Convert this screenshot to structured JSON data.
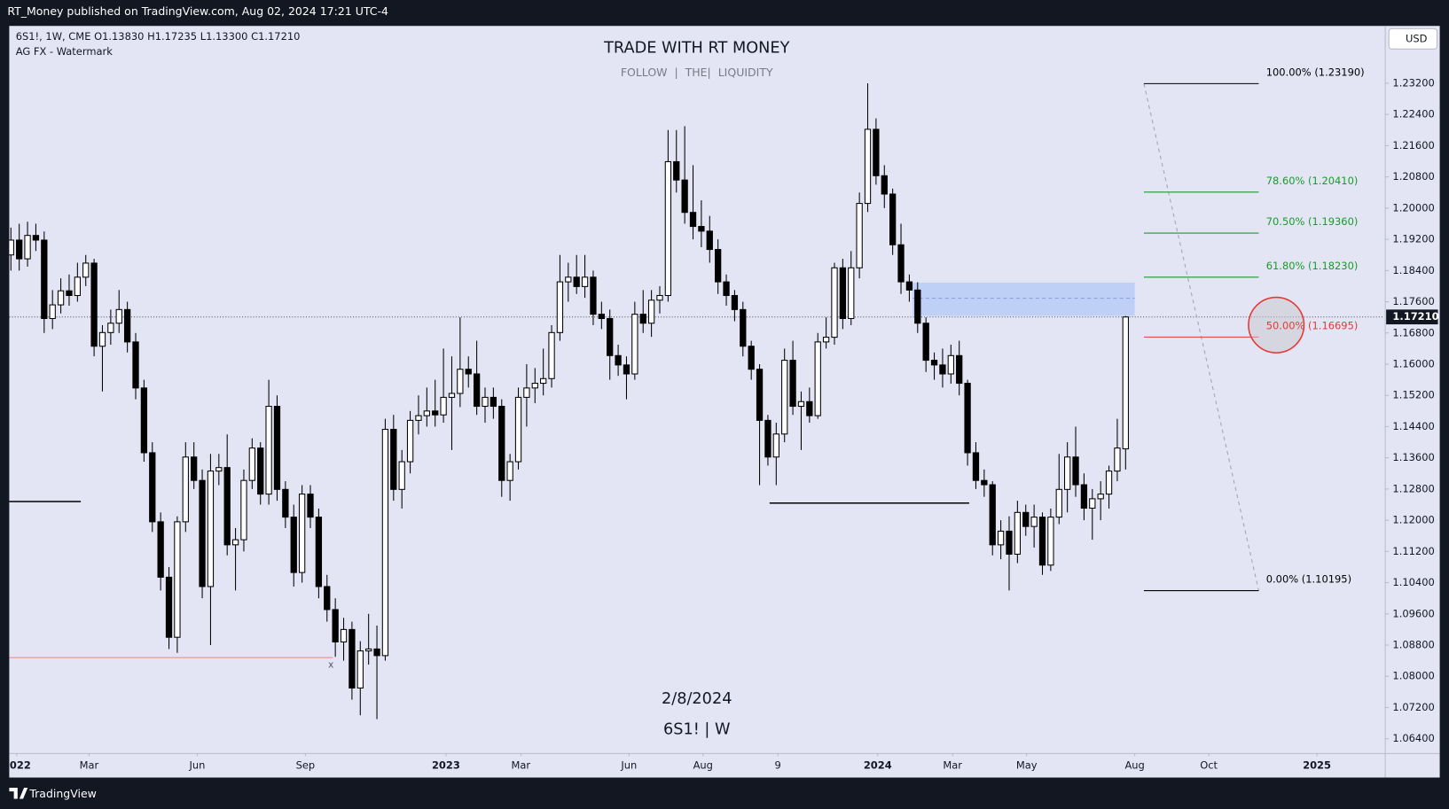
{
  "header": "RT_Money published on TradingView.com, Aug 02, 2024 17:21 UTC-4",
  "footer_brand": "TradingView",
  "chart_data": {
    "type": "candlestick",
    "title": "TRADE WITH RT MONEY",
    "subtitle": "FOLLOW  |  THE|  LIQUIDITY",
    "symbol_line": "6S1!, 1W, CME  O1.13830  H1.17235  L1.13300  C1.17210",
    "watermark": "AG FX - Watermark",
    "date_note": "2/8/2024",
    "symbol_note": "6S1! | W",
    "currency": "USD",
    "up_color": "#ffffff",
    "down_color": "#000000",
    "wick_color": "#000000",
    "xlim": [
      -0.2,
      165.1
    ],
    "ylim": [
      1.0602,
      1.2467
    ],
    "yticks": [
      {
        "value": 1.064,
        "label": "1.06400"
      },
      {
        "value": 1.072,
        "label": "1.07200"
      },
      {
        "value": 1.08,
        "label": "1.08000"
      },
      {
        "value": 1.088,
        "label": "1.08800"
      },
      {
        "value": 1.096,
        "label": "1.09600"
      },
      {
        "value": 1.104,
        "label": "1.10400"
      },
      {
        "value": 1.112,
        "label": "1.11200"
      },
      {
        "value": 1.12,
        "label": "1.12000"
      },
      {
        "value": 1.128,
        "label": "1.12800"
      },
      {
        "value": 1.136,
        "label": "1.13600"
      },
      {
        "value": 1.144,
        "label": "1.14400"
      },
      {
        "value": 1.152,
        "label": "1.15200"
      },
      {
        "value": 1.16,
        "label": "1.16000"
      },
      {
        "value": 1.168,
        "label": "1.16800"
      },
      {
        "value": 1.176,
        "label": "1.17600"
      },
      {
        "value": 1.184,
        "label": "1.18400"
      },
      {
        "value": 1.192,
        "label": "1.19200"
      },
      {
        "value": 1.2,
        "label": "1.20000"
      },
      {
        "value": 1.208,
        "label": "1.20800"
      },
      {
        "value": 1.216,
        "label": "1.21600"
      },
      {
        "value": 1.224,
        "label": "1.22400"
      },
      {
        "value": 1.232,
        "label": "1.23200"
      }
    ],
    "xticks": [
      {
        "value": 0.7,
        "label": "2022"
      },
      {
        "value": 9.4,
        "label": "Mar"
      },
      {
        "value": 22.4,
        "label": "Jun"
      },
      {
        "value": 35.4,
        "label": "Sep"
      },
      {
        "value": 52.3,
        "label": "2023"
      },
      {
        "value": 61.3,
        "label": "Mar"
      },
      {
        "value": 74.3,
        "label": "Jun"
      },
      {
        "value": 83.2,
        "label": "Aug"
      },
      {
        "value": 92.2,
        "label": "9"
      },
      {
        "value": 104.2,
        "label": "2024"
      },
      {
        "value": 113.2,
        "label": "Mar"
      },
      {
        "value": 122.1,
        "label": "May"
      },
      {
        "value": 135.1,
        "label": "Aug"
      },
      {
        "value": 144,
        "label": "Oct"
      },
      {
        "value": 157,
        "label": "2025"
      }
    ],
    "candles": [
      [
        1.188,
        1.195,
        1.184,
        1.1918
      ],
      [
        1.1918,
        1.196,
        1.184,
        1.187
      ],
      [
        1.187,
        1.1965,
        1.185,
        1.193
      ],
      [
        1.193,
        1.196,
        1.189,
        1.1918
      ],
      [
        1.1918,
        1.194,
        1.168,
        1.1717
      ],
      [
        1.1717,
        1.179,
        1.169,
        1.1752
      ],
      [
        1.1752,
        1.182,
        1.173,
        1.1788
      ],
      [
        1.1788,
        1.183,
        1.175,
        1.1776
      ],
      [
        1.1776,
        1.186,
        1.176,
        1.1823
      ],
      [
        1.1823,
        1.188,
        1.18,
        1.1859
      ],
      [
        1.1859,
        1.187,
        1.162,
        1.1646
      ],
      [
        1.1646,
        1.17,
        1.153,
        1.1681
      ],
      [
        1.1681,
        1.174,
        1.165,
        1.1705
      ],
      [
        1.1705,
        1.179,
        1.168,
        1.174
      ],
      [
        1.174,
        1.176,
        1.163,
        1.1657
      ],
      [
        1.1657,
        1.168,
        1.151,
        1.1539
      ],
      [
        1.1539,
        1.156,
        1.135,
        1.1373
      ],
      [
        1.1373,
        1.14,
        1.117,
        1.1196
      ],
      [
        1.1196,
        1.122,
        1.102,
        1.1054
      ],
      [
        1.1054,
        1.108,
        1.087,
        1.09
      ],
      [
        1.09,
        1.121,
        1.086,
        1.1196
      ],
      [
        1.1196,
        1.14,
        1.117,
        1.1362
      ],
      [
        1.1362,
        1.14,
        1.128,
        1.1302
      ],
      [
        1.1302,
        1.133,
        1.1,
        1.103
      ],
      [
        1.103,
        1.137,
        1.088,
        1.1326
      ],
      [
        1.1326,
        1.137,
        1.129,
        1.1335
      ],
      [
        1.1335,
        1.142,
        1.111,
        1.1137
      ],
      [
        1.1137,
        1.118,
        1.102,
        1.115
      ],
      [
        1.115,
        1.133,
        1.112,
        1.1302
      ],
      [
        1.1302,
        1.141,
        1.128,
        1.1385
      ],
      [
        1.1385,
        1.14,
        1.124,
        1.1267
      ],
      [
        1.1267,
        1.156,
        1.124,
        1.1492
      ],
      [
        1.1492,
        1.152,
        1.125,
        1.1279
      ],
      [
        1.1279,
        1.13,
        1.118,
        1.1208
      ],
      [
        1.1208,
        1.124,
        1.103,
        1.1066
      ],
      [
        1.1066,
        1.129,
        1.104,
        1.1267
      ],
      [
        1.1267,
        1.129,
        1.118,
        1.1208
      ],
      [
        1.1208,
        1.123,
        1.1,
        1.103
      ],
      [
        1.103,
        1.106,
        1.094,
        1.0971
      ],
      [
        1.0971,
        1.1,
        1.085,
        1.0888
      ],
      [
        1.0888,
        1.095,
        1.084,
        1.092
      ],
      [
        1.092,
        1.094,
        1.074,
        1.077
      ],
      [
        1.077,
        1.089,
        1.07,
        1.0865
      ],
      [
        1.0865,
        1.096,
        1.083,
        1.087
      ],
      [
        1.087,
        1.093,
        1.069,
        1.0853
      ],
      [
        1.0853,
        1.146,
        1.084,
        1.1433
      ],
      [
        1.1433,
        1.147,
        1.125,
        1.1279
      ],
      [
        1.1279,
        1.138,
        1.123,
        1.135
      ],
      [
        1.135,
        1.148,
        1.132,
        1.1456
      ],
      [
        1.1456,
        1.152,
        1.142,
        1.1468
      ],
      [
        1.1468,
        1.154,
        1.144,
        1.148
      ],
      [
        1.148,
        1.156,
        1.144,
        1.147
      ],
      [
        1.147,
        1.164,
        1.145,
        1.1515
      ],
      [
        1.1515,
        1.162,
        1.138,
        1.1525
      ],
      [
        1.1525,
        1.172,
        1.149,
        1.1587
      ],
      [
        1.1587,
        1.162,
        1.154,
        1.1575
      ],
      [
        1.1575,
        1.166,
        1.147,
        1.1492
      ],
      [
        1.1492,
        1.154,
        1.145,
        1.1515
      ],
      [
        1.1515,
        1.154,
        1.146,
        1.1492
      ],
      [
        1.1492,
        1.151,
        1.126,
        1.1302
      ],
      [
        1.1302,
        1.137,
        1.125,
        1.135
      ],
      [
        1.135,
        1.154,
        1.133,
        1.1515
      ],
      [
        1.1515,
        1.16,
        1.144,
        1.1539
      ],
      [
        1.1539,
        1.159,
        1.15,
        1.1551
      ],
      [
        1.1551,
        1.164,
        1.152,
        1.1563
      ],
      [
        1.1563,
        1.17,
        1.154,
        1.1681
      ],
      [
        1.1681,
        1.188,
        1.166,
        1.1811
      ],
      [
        1.1811,
        1.186,
        1.176,
        1.1823
      ],
      [
        1.1823,
        1.188,
        1.178,
        1.1799
      ],
      [
        1.1799,
        1.188,
        1.177,
        1.1823
      ],
      [
        1.1823,
        1.184,
        1.17,
        1.1728
      ],
      [
        1.1728,
        1.176,
        1.169,
        1.1717
      ],
      [
        1.1717,
        1.174,
        1.156,
        1.1622
      ],
      [
        1.1622,
        1.165,
        1.157,
        1.1598
      ],
      [
        1.1598,
        1.162,
        1.151,
        1.1575
      ],
      [
        1.1575,
        1.176,
        1.156,
        1.1728
      ],
      [
        1.1728,
        1.179,
        1.168,
        1.1705
      ],
      [
        1.1705,
        1.179,
        1.167,
        1.1764
      ],
      [
        1.1764,
        1.18,
        1.173,
        1.1776
      ],
      [
        1.1776,
        1.22,
        1.176,
        1.2119
      ],
      [
        1.2119,
        1.22,
        1.204,
        1.2072
      ],
      [
        1.2072,
        1.221,
        1.196,
        1.1989
      ],
      [
        1.1989,
        1.211,
        1.192,
        1.1953
      ],
      [
        1.1953,
        1.202,
        1.19,
        1.1941
      ],
      [
        1.1941,
        1.198,
        1.186,
        1.1894
      ],
      [
        1.1894,
        1.192,
        1.178,
        1.1811
      ],
      [
        1.1811,
        1.183,
        1.175,
        1.1776
      ],
      [
        1.1776,
        1.179,
        1.171,
        1.174
      ],
      [
        1.174,
        1.176,
        1.162,
        1.1646
      ],
      [
        1.1646,
        1.166,
        1.156,
        1.1587
      ],
      [
        1.1587,
        1.16,
        1.129,
        1.1456
      ],
      [
        1.1456,
        1.147,
        1.134,
        1.1362
      ],
      [
        1.1362,
        1.145,
        1.129,
        1.1421
      ],
      [
        1.1421,
        1.164,
        1.14,
        1.161
      ],
      [
        1.161,
        1.166,
        1.147,
        1.1492
      ],
      [
        1.1492,
        1.153,
        1.138,
        1.1504
      ],
      [
        1.1504,
        1.154,
        1.145,
        1.1468
      ],
      [
        1.1468,
        1.168,
        1.146,
        1.1657
      ],
      [
        1.1657,
        1.172,
        1.164,
        1.1669
      ],
      [
        1.1669,
        1.186,
        1.165,
        1.1847
      ],
      [
        1.1847,
        1.187,
        1.169,
        1.1717
      ],
      [
        1.1717,
        1.189,
        1.17,
        1.1847
      ],
      [
        1.1847,
        1.204,
        1.182,
        1.2012
      ],
      [
        1.2012,
        1.232,
        1.199,
        1.2202
      ],
      [
        1.2202,
        1.223,
        1.206,
        1.2083
      ],
      [
        1.2083,
        1.211,
        1.2,
        1.2036
      ],
      [
        1.2036,
        1.205,
        1.188,
        1.1906
      ],
      [
        1.1906,
        1.196,
        1.178,
        1.1811
      ],
      [
        1.1811,
        1.183,
        1.176,
        1.179
      ],
      [
        1.179,
        1.181,
        1.168,
        1.1705
      ],
      [
        1.1705,
        1.172,
        1.158,
        1.161
      ],
      [
        1.161,
        1.163,
        1.156,
        1.1598
      ],
      [
        1.1598,
        1.164,
        1.154,
        1.1575
      ],
      [
        1.1575,
        1.165,
        1.155,
        1.1622
      ],
      [
        1.1622,
        1.166,
        1.152,
        1.1551
      ],
      [
        1.1551,
        1.156,
        1.134,
        1.1373
      ],
      [
        1.1373,
        1.14,
        1.128,
        1.1302
      ],
      [
        1.1302,
        1.133,
        1.126,
        1.1291
      ],
      [
        1.1291,
        1.13,
        1.111,
        1.1137
      ],
      [
        1.1137,
        1.12,
        1.11,
        1.1172
      ],
      [
        1.1172,
        1.121,
        1.102,
        1.1113
      ],
      [
        1.1113,
        1.125,
        1.109,
        1.122
      ],
      [
        1.122,
        1.124,
        1.116,
        1.1184
      ],
      [
        1.1184,
        1.124,
        1.113,
        1.1208
      ],
      [
        1.1208,
        1.122,
        1.106,
        1.1085
      ],
      [
        1.1085,
        1.123,
        1.107,
        1.1208
      ],
      [
        1.1208,
        1.137,
        1.119,
        1.1279
      ],
      [
        1.1279,
        1.14,
        1.122,
        1.1362
      ],
      [
        1.1362,
        1.144,
        1.126,
        1.1291
      ],
      [
        1.1291,
        1.132,
        1.12,
        1.1231
      ],
      [
        1.1231,
        1.128,
        1.115,
        1.1255
      ],
      [
        1.1255,
        1.13,
        1.12,
        1.1267
      ],
      [
        1.1267,
        1.134,
        1.123,
        1.1326
      ],
      [
        1.1326,
        1.146,
        1.13,
        1.1385
      ],
      [
        1.1383,
        1.17235,
        1.133,
        1.1721
      ]
    ],
    "last_price": {
      "value": 1.1721,
      "label": "1.17210"
    },
    "fib_x": [
      136.2,
      150
    ],
    "fib": [
      {
        "value": 1.2319,
        "label": "100.00% (1.23190)",
        "color": "#000000"
      },
      {
        "value": 1.2041,
        "label": "78.60% (1.20410)",
        "color": "#1a9a2a"
      },
      {
        "value": 1.1936,
        "label": "70.50% (1.19360)",
        "color": "#1a9a2a"
      },
      {
        "value": 1.1823,
        "label": "61.80% (1.18230)",
        "color": "#1a9a2a"
      },
      {
        "value": 1.16695,
        "label": "50.00% (1.16695)",
        "color": "#e53935"
      },
      {
        "value": 1.10195,
        "label": "0.00% (1.10195)",
        "color": "#000000"
      }
    ],
    "zone": {
      "top": 1.1809,
      "bottom": 1.1724,
      "mid": 1.1769,
      "x": [
        108.4,
        135.1
      ],
      "color": "#b9ccf7"
    },
    "levels": [
      {
        "value": 1.1248,
        "x": [
          -0.2,
          8.4
        ],
        "color": "#000000"
      },
      {
        "value": 1.1244,
        "x": [
          91.2,
          115.2
        ],
        "color": "#000000"
      },
      {
        "value": 1.0848,
        "x": [
          -0.2,
          38.7
        ],
        "color": "#f08080",
        "marker": "x"
      }
    ]
  }
}
